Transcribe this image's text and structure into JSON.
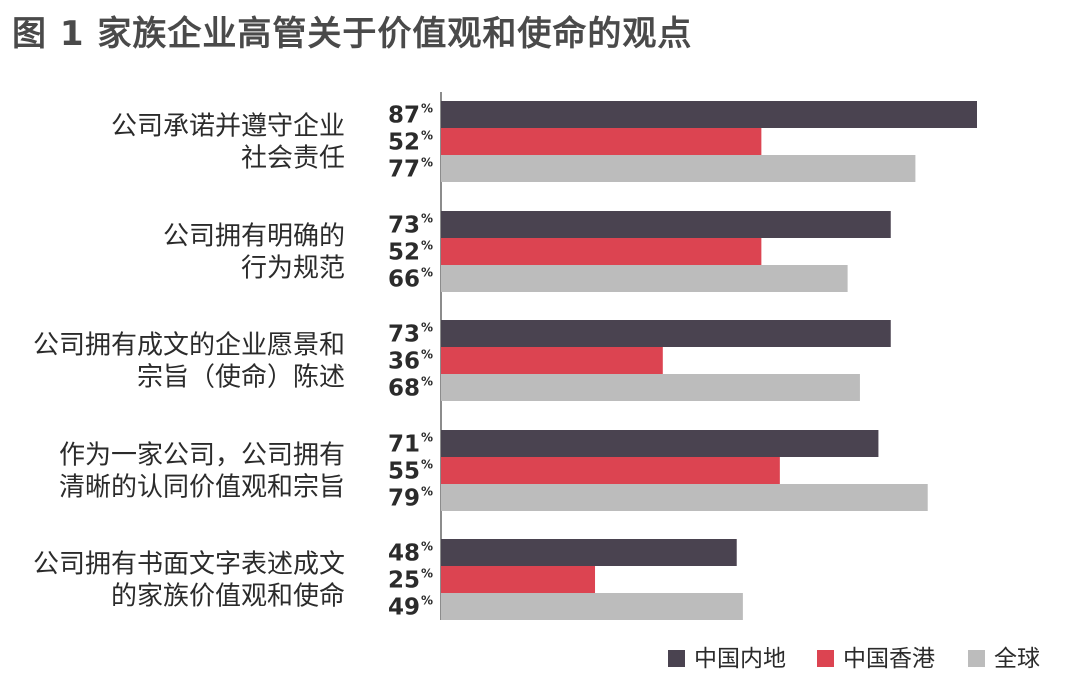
{
  "chart_data": {
    "type": "bar",
    "orientation": "horizontal",
    "title": "图 1 家族企业高管关于价值观和使命的观点",
    "categories": [
      [
        "公司承诺并遵守企业",
        "社会责任"
      ],
      [
        "公司拥有明确的",
        "行为规范"
      ],
      [
        "公司拥有成文的企业愿景和",
        "宗旨（使命）陈述"
      ],
      [
        "作为一家公司，公司拥有",
        "清晰的认同价值观和宗旨"
      ],
      [
        "公司拥有书面文字表述成文",
        "的家族价值观和使命"
      ]
    ],
    "series": [
      {
        "name": "中国内地",
        "color": "#4a4350",
        "values": [
          87,
          73,
          73,
          71,
          48
        ]
      },
      {
        "name": "中国香港",
        "color": "#dc4451",
        "values": [
          52,
          52,
          36,
          55,
          25
        ]
      },
      {
        "name": "全球",
        "color": "#bcbcbc",
        "values": [
          77,
          66,
          68,
          79,
          49
        ]
      }
    ],
    "value_suffix": "%",
    "xlim": [
      0,
      100
    ],
    "grid": false,
    "legend_position": "bottom-right"
  }
}
